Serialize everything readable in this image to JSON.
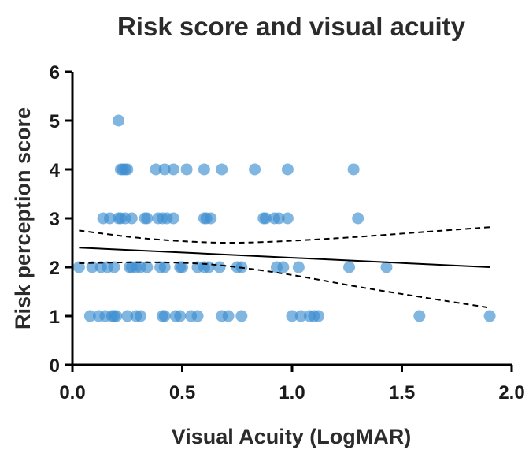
{
  "chart_data": {
    "type": "scatter",
    "title": "Risk score and visual acuity",
    "xlabel": "Visual Acuity (LogMAR)",
    "ylabel": "Risk perception score",
    "xlim": [
      0,
      2.0
    ],
    "ylim": [
      0,
      6
    ],
    "xticks": [
      0,
      0.5,
      1.0,
      1.5,
      2.0
    ],
    "xtick_labels": [
      "0.0",
      "0.5",
      "1.0",
      "1.5",
      "2.0"
    ],
    "yticks": [
      0,
      1,
      2,
      3,
      4,
      5,
      6
    ],
    "ytick_labels": [
      "0",
      "1",
      "2",
      "3",
      "4",
      "5",
      "6"
    ],
    "grid": false,
    "point_color": "#3d8fd1",
    "points": [
      {
        "x": 0.21,
        "y": 5
      },
      {
        "x": 0.22,
        "y": 4
      },
      {
        "x": 0.23,
        "y": 4
      },
      {
        "x": 0.24,
        "y": 4
      },
      {
        "x": 0.25,
        "y": 4
      },
      {
        "x": 0.38,
        "y": 4
      },
      {
        "x": 0.42,
        "y": 4
      },
      {
        "x": 0.46,
        "y": 4
      },
      {
        "x": 0.52,
        "y": 4
      },
      {
        "x": 0.6,
        "y": 4
      },
      {
        "x": 0.68,
        "y": 4
      },
      {
        "x": 0.83,
        "y": 4
      },
      {
        "x": 0.98,
        "y": 4
      },
      {
        "x": 1.28,
        "y": 4
      },
      {
        "x": 0.14,
        "y": 3
      },
      {
        "x": 0.17,
        "y": 3
      },
      {
        "x": 0.21,
        "y": 3
      },
      {
        "x": 0.22,
        "y": 3
      },
      {
        "x": 0.24,
        "y": 3
      },
      {
        "x": 0.27,
        "y": 3
      },
      {
        "x": 0.33,
        "y": 3
      },
      {
        "x": 0.34,
        "y": 3
      },
      {
        "x": 0.39,
        "y": 3
      },
      {
        "x": 0.41,
        "y": 3
      },
      {
        "x": 0.43,
        "y": 3
      },
      {
        "x": 0.46,
        "y": 3
      },
      {
        "x": 0.6,
        "y": 3
      },
      {
        "x": 0.61,
        "y": 3
      },
      {
        "x": 0.63,
        "y": 3
      },
      {
        "x": 0.87,
        "y": 3
      },
      {
        "x": 0.88,
        "y": 3
      },
      {
        "x": 0.92,
        "y": 3
      },
      {
        "x": 0.94,
        "y": 3
      },
      {
        "x": 0.98,
        "y": 3
      },
      {
        "x": 1.3,
        "y": 3
      },
      {
        "x": 0.03,
        "y": 2
      },
      {
        "x": 0.09,
        "y": 2
      },
      {
        "x": 0.13,
        "y": 2
      },
      {
        "x": 0.16,
        "y": 2
      },
      {
        "x": 0.19,
        "y": 2
      },
      {
        "x": 0.26,
        "y": 2
      },
      {
        "x": 0.27,
        "y": 2
      },
      {
        "x": 0.29,
        "y": 2
      },
      {
        "x": 0.31,
        "y": 2
      },
      {
        "x": 0.34,
        "y": 2
      },
      {
        "x": 0.4,
        "y": 2
      },
      {
        "x": 0.42,
        "y": 2
      },
      {
        "x": 0.49,
        "y": 2
      },
      {
        "x": 0.5,
        "y": 2
      },
      {
        "x": 0.57,
        "y": 2
      },
      {
        "x": 0.6,
        "y": 2
      },
      {
        "x": 0.62,
        "y": 2
      },
      {
        "x": 0.67,
        "y": 2
      },
      {
        "x": 0.75,
        "y": 2
      },
      {
        "x": 0.77,
        "y": 2
      },
      {
        "x": 0.93,
        "y": 2
      },
      {
        "x": 0.96,
        "y": 2
      },
      {
        "x": 1.03,
        "y": 2
      },
      {
        "x": 1.26,
        "y": 2
      },
      {
        "x": 1.43,
        "y": 2
      },
      {
        "x": 0.08,
        "y": 1
      },
      {
        "x": 0.12,
        "y": 1
      },
      {
        "x": 0.15,
        "y": 1
      },
      {
        "x": 0.18,
        "y": 1
      },
      {
        "x": 0.19,
        "y": 1
      },
      {
        "x": 0.2,
        "y": 1
      },
      {
        "x": 0.25,
        "y": 1
      },
      {
        "x": 0.29,
        "y": 1
      },
      {
        "x": 0.31,
        "y": 1
      },
      {
        "x": 0.41,
        "y": 1
      },
      {
        "x": 0.42,
        "y": 1
      },
      {
        "x": 0.47,
        "y": 1
      },
      {
        "x": 0.49,
        "y": 1
      },
      {
        "x": 0.54,
        "y": 1
      },
      {
        "x": 0.57,
        "y": 1
      },
      {
        "x": 0.68,
        "y": 1
      },
      {
        "x": 0.71,
        "y": 1
      },
      {
        "x": 0.77,
        "y": 1
      },
      {
        "x": 1.0,
        "y": 1
      },
      {
        "x": 1.04,
        "y": 1
      },
      {
        "x": 1.08,
        "y": 1
      },
      {
        "x": 1.1,
        "y": 1
      },
      {
        "x": 1.12,
        "y": 1
      },
      {
        "x": 1.58,
        "y": 1
      },
      {
        "x": 1.9,
        "y": 1
      }
    ],
    "fit_line": [
      {
        "x": 0.03,
        "y": 2.4
      },
      {
        "x": 1.9,
        "y": 2.0
      }
    ],
    "ci_upper": [
      {
        "x": 0.03,
        "y": 2.75
      },
      {
        "x": 0.3,
        "y": 2.6
      },
      {
        "x": 0.55,
        "y": 2.52
      },
      {
        "x": 0.75,
        "y": 2.5
      },
      {
        "x": 1.0,
        "y": 2.54
      },
      {
        "x": 1.3,
        "y": 2.62
      },
      {
        "x": 1.6,
        "y": 2.72
      },
      {
        "x": 1.9,
        "y": 2.82
      }
    ],
    "ci_lower": [
      {
        "x": 0.03,
        "y": 2.08
      },
      {
        "x": 0.3,
        "y": 2.1
      },
      {
        "x": 0.55,
        "y": 2.08
      },
      {
        "x": 0.75,
        "y": 2.0
      },
      {
        "x": 1.0,
        "y": 1.84
      },
      {
        "x": 1.3,
        "y": 1.6
      },
      {
        "x": 1.6,
        "y": 1.38
      },
      {
        "x": 1.9,
        "y": 1.17
      }
    ]
  }
}
